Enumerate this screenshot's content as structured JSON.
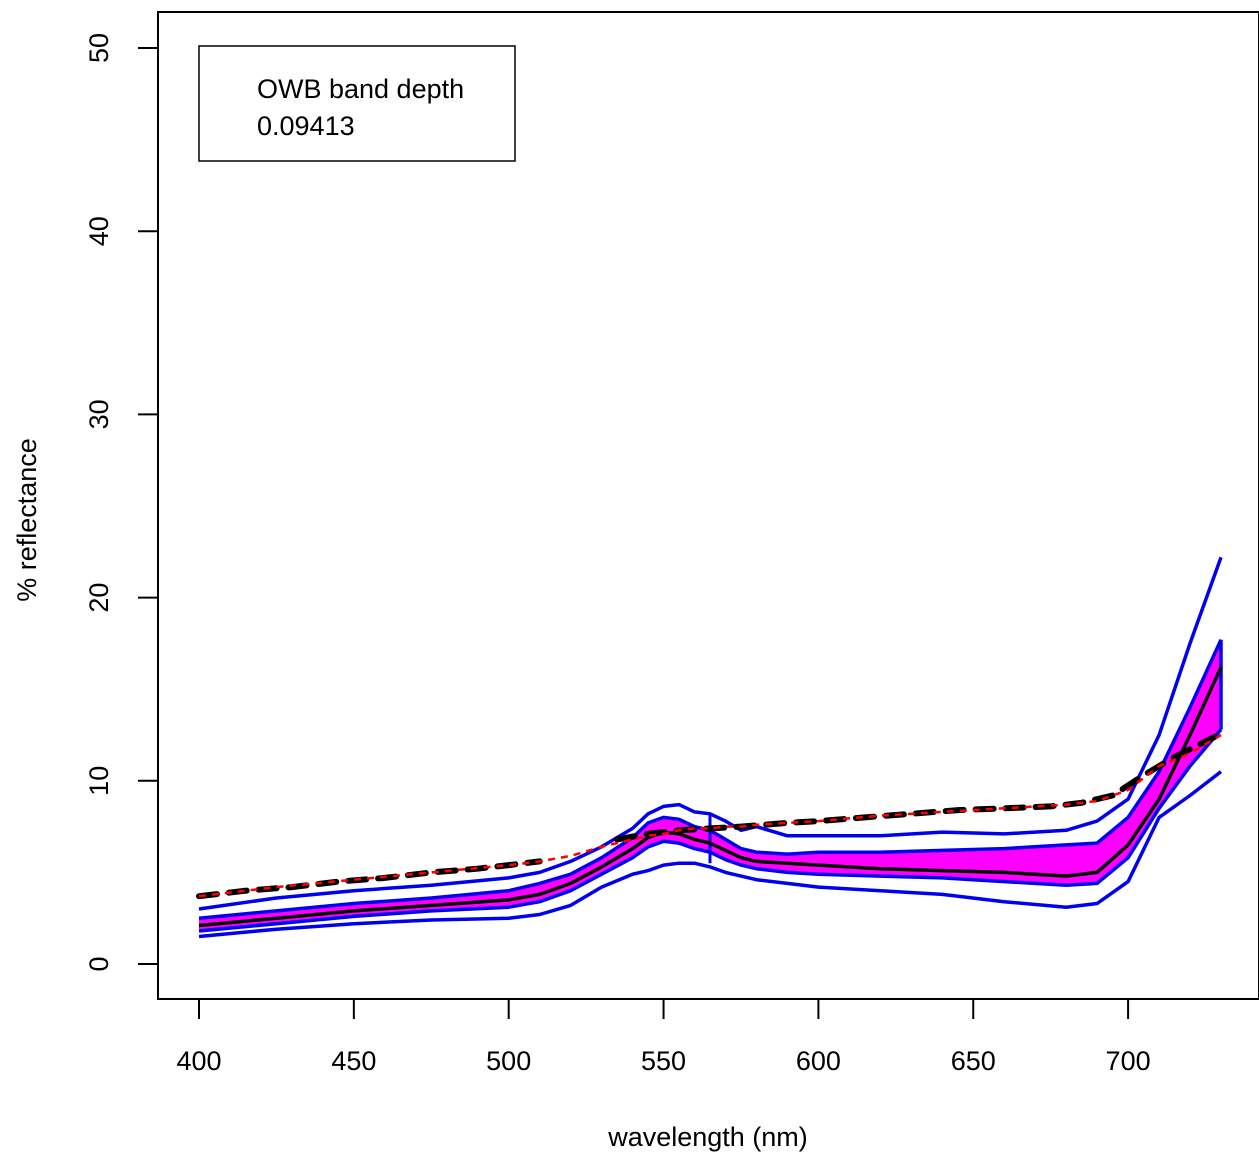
{
  "chart_data": {
    "type": "line",
    "title": "",
    "xlabel": "wavelength (nm)",
    "ylabel": "% reflectance",
    "xlim": [
      400,
      730
    ],
    "ylim": [
      0,
      50
    ],
    "xticks": [
      400,
      450,
      500,
      550,
      600,
      650,
      700
    ],
    "yticks": [
      0,
      10,
      20,
      30,
      40,
      50
    ],
    "grid": false,
    "legend_position": "top-left",
    "legend": {
      "lines": [
        "OWB band depth",
        "0.09413"
      ]
    },
    "colors": {
      "band_fill": "#ff00ff",
      "curve": "#0000ee",
      "median": "#000000",
      "hull": "#ff0000",
      "dashed": "#000000"
    },
    "x": [
      400,
      425,
      450,
      475,
      500,
      510,
      520,
      530,
      540,
      545,
      550,
      555,
      560,
      565,
      570,
      575,
      580,
      590,
      600,
      620,
      640,
      660,
      680,
      690,
      700,
      710,
      720,
      730
    ],
    "series": [
      {
        "role": "outer_upper",
        "values": [
          3.0,
          3.6,
          4.0,
          4.3,
          4.7,
          5.0,
          5.6,
          6.4,
          7.4,
          8.2,
          8.6,
          8.7,
          8.3,
          8.2,
          7.8,
          7.3,
          7.5,
          7.0,
          7.0,
          7.0,
          7.2,
          7.1,
          7.3,
          7.8,
          9.0,
          12.5,
          17.5,
          22.2
        ]
      },
      {
        "role": "band_upper",
        "values": [
          2.5,
          2.9,
          3.3,
          3.6,
          4.0,
          4.4,
          4.9,
          5.8,
          6.9,
          7.7,
          8.0,
          7.9,
          7.5,
          7.3,
          6.8,
          6.3,
          6.1,
          6.0,
          6.1,
          6.1,
          6.2,
          6.3,
          6.5,
          6.6,
          8.0,
          10.5,
          14.0,
          17.7
        ]
      },
      {
        "role": "median",
        "values": [
          2.1,
          2.5,
          2.9,
          3.2,
          3.5,
          3.8,
          4.4,
          5.3,
          6.3,
          6.9,
          7.2,
          7.1,
          6.8,
          6.6,
          6.2,
          5.8,
          5.6,
          5.5,
          5.4,
          5.2,
          5.1,
          5.0,
          4.8,
          5.0,
          6.5,
          9.0,
          12.5,
          16.2
        ]
      },
      {
        "role": "band_lower",
        "values": [
          1.8,
          2.2,
          2.6,
          2.9,
          3.1,
          3.4,
          4.0,
          4.9,
          5.8,
          6.4,
          6.7,
          6.6,
          6.3,
          6.1,
          5.7,
          5.4,
          5.2,
          5.0,
          4.9,
          4.8,
          4.7,
          4.5,
          4.3,
          4.4,
          5.8,
          8.5,
          10.8,
          12.8
        ]
      },
      {
        "role": "outer_lower",
        "values": [
          1.5,
          1.9,
          2.2,
          2.4,
          2.5,
          2.7,
          3.2,
          4.2,
          4.9,
          5.1,
          5.4,
          5.5,
          5.5,
          5.3,
          5.0,
          4.8,
          4.6,
          4.4,
          4.2,
          4.0,
          3.8,
          3.4,
          3.1,
          3.3,
          4.5,
          8.0,
          9.2,
          10.5
        ]
      },
      {
        "role": "hull",
        "values": [
          3.7,
          4.2,
          4.6,
          5.0,
          5.4,
          5.6,
          5.9,
          6.4,
          6.8,
          7.0,
          7.1,
          7.3,
          7.4,
          7.4,
          7.5,
          7.5,
          7.6,
          7.7,
          7.8,
          8.1,
          8.3,
          8.5,
          8.7,
          8.9,
          9.5,
          10.8,
          11.5,
          12.5
        ]
      }
    ],
    "dashed_segments": [
      {
        "x": [
          400,
          415,
          430,
          445,
          460,
          475,
          490,
          500,
          510
        ],
        "values": [
          3.7,
          4.0,
          4.2,
          4.5,
          4.7,
          5.0,
          5.2,
          5.4,
          5.6
        ]
      },
      {
        "x": [
          535,
          545,
          555,
          565,
          575,
          590,
          600,
          615,
          630,
          645,
          660,
          675,
          685,
          695,
          705,
          715,
          728
        ],
        "values": [
          6.8,
          7.1,
          7.3,
          7.4,
          7.5,
          7.7,
          7.8,
          8.0,
          8.2,
          8.4,
          8.5,
          8.6,
          8.8,
          9.2,
          10.3,
          11.3,
          12.4
        ]
      }
    ],
    "vertical_marker": {
      "x": 565,
      "y_range": [
        5.5,
        8.2
      ]
    }
  }
}
